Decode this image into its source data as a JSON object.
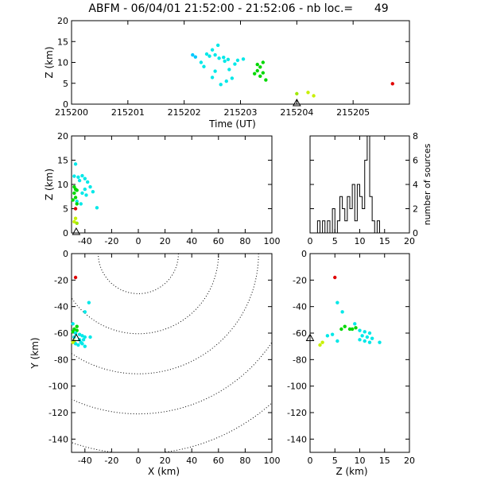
{
  "title": "ABFM - 06/04/01 21:52:00 - 21:52:06 - nb loc.=      49",
  "chart_data": [
    {
      "id": "time",
      "type": "scatter",
      "xlabel": "Time (UT)",
      "ylabel": "Z (km)",
      "xlim": [
        215200,
        215206
      ],
      "ylim": [
        0,
        20
      ],
      "xticks": [
        215200,
        215201,
        215202,
        215203,
        215204,
        215205
      ],
      "yticks": [
        0,
        5,
        10,
        15,
        20
      ],
      "marker": {
        "x": 215204.0,
        "y": 0,
        "symbol": "triangle"
      },
      "points": [
        {
          "x": 215202.15,
          "y": 11.8,
          "color": "#00c8ff"
        },
        {
          "x": 215202.2,
          "y": 11.3,
          "color": "#00c8ff"
        },
        {
          "x": 215202.4,
          "y": 12.0,
          "color": "#00e8e8"
        },
        {
          "x": 215202.45,
          "y": 11.5,
          "color": "#00e8e8"
        },
        {
          "x": 215202.5,
          "y": 13.0,
          "color": "#00e8e8"
        },
        {
          "x": 215202.55,
          "y": 11.8,
          "color": "#00e8e8"
        },
        {
          "x": 215202.6,
          "y": 14.1,
          "color": "#00e8e8"
        },
        {
          "x": 215202.62,
          "y": 11.0,
          "color": "#00e8e8"
        },
        {
          "x": 215202.3,
          "y": 10.0,
          "color": "#00e8e8"
        },
        {
          "x": 215202.35,
          "y": 9.0,
          "color": "#00e8e8"
        },
        {
          "x": 215202.7,
          "y": 11.2,
          "color": "#00e8e8"
        },
        {
          "x": 215202.72,
          "y": 10.3,
          "color": "#00e8e8"
        },
        {
          "x": 215202.78,
          "y": 10.7,
          "color": "#00e8e8"
        },
        {
          "x": 215202.8,
          "y": 8.3,
          "color": "#00e8e8"
        },
        {
          "x": 215202.55,
          "y": 7.9,
          "color": "#00e8e8"
        },
        {
          "x": 215202.5,
          "y": 6.4,
          "color": "#00e8e8"
        },
        {
          "x": 215202.65,
          "y": 4.7,
          "color": "#00e8e8"
        },
        {
          "x": 215202.85,
          "y": 6.2,
          "color": "#00e8e8"
        },
        {
          "x": 215202.9,
          "y": 9.6,
          "color": "#00e8e8"
        },
        {
          "x": 215202.95,
          "y": 10.5,
          "color": "#00e8e8"
        },
        {
          "x": 215202.75,
          "y": 5.5,
          "color": "#00e8e8"
        },
        {
          "x": 215203.05,
          "y": 10.8,
          "color": "#00e8e8"
        },
        {
          "x": 215203.3,
          "y": 9.5,
          "color": "#00d800"
        },
        {
          "x": 215203.35,
          "y": 8.9,
          "color": "#00d800"
        },
        {
          "x": 215203.3,
          "y": 8.0,
          "color": "#00d800"
        },
        {
          "x": 215203.25,
          "y": 7.3,
          "color": "#00d800"
        },
        {
          "x": 215203.35,
          "y": 6.7,
          "color": "#00d800"
        },
        {
          "x": 215203.4,
          "y": 10.0,
          "color": "#00d800"
        },
        {
          "x": 215203.4,
          "y": 7.5,
          "color": "#00d800"
        },
        {
          "x": 215203.45,
          "y": 5.8,
          "color": "#00d800"
        },
        {
          "x": 215204.0,
          "y": 2.5,
          "color": "#a0e800"
        },
        {
          "x": 215204.2,
          "y": 2.8,
          "color": "#c8f000"
        },
        {
          "x": 215204.3,
          "y": 2.0,
          "color": "#c8f000"
        },
        {
          "x": 215205.7,
          "y": 4.9,
          "color": "#e00000"
        }
      ]
    },
    {
      "id": "xz",
      "type": "scatter",
      "ylabel": "Z (km)",
      "xlim": [
        -50,
        100
      ],
      "ylim": [
        0,
        20
      ],
      "xticks": [
        -40,
        -20,
        0,
        20,
        40,
        60,
        80,
        100
      ],
      "yticks": [
        0,
        5,
        10,
        15,
        20
      ],
      "marker": {
        "x": -46.5,
        "y": 0,
        "symbol": "triangle"
      },
      "points": [
        {
          "x": -47,
          "y": 14.2,
          "color": "#00e8e8"
        },
        {
          "x": -48,
          "y": 11.7,
          "color": "#00e8e8"
        },
        {
          "x": -45,
          "y": 11.5,
          "color": "#00e8e8"
        },
        {
          "x": -42,
          "y": 11.8,
          "color": "#00e8e8"
        },
        {
          "x": -40,
          "y": 11.2,
          "color": "#00e8e8"
        },
        {
          "x": -44,
          "y": 10.8,
          "color": "#00e8e8"
        },
        {
          "x": -38,
          "y": 10.5,
          "color": "#00e8e8"
        },
        {
          "x": -36,
          "y": 9.5,
          "color": "#00e8e8"
        },
        {
          "x": -40,
          "y": 9.0,
          "color": "#00e8e8"
        },
        {
          "x": -34,
          "y": 8.5,
          "color": "#00e8e8"
        },
        {
          "x": -42,
          "y": 8.2,
          "color": "#00e8e8"
        },
        {
          "x": -39,
          "y": 7.8,
          "color": "#00e8e8"
        },
        {
          "x": -31,
          "y": 5.2,
          "color": "#00e8e8"
        },
        {
          "x": -46,
          "y": 6.5,
          "color": "#00e8e8"
        },
        {
          "x": -43,
          "y": 6.0,
          "color": "#00e8e8"
        },
        {
          "x": -48,
          "y": 9.5,
          "color": "#00d800"
        },
        {
          "x": -47,
          "y": 9.0,
          "color": "#00d800"
        },
        {
          "x": -46,
          "y": 8.8,
          "color": "#00d800"
        },
        {
          "x": -48,
          "y": 8.2,
          "color": "#00d800"
        },
        {
          "x": -47,
          "y": 7.3,
          "color": "#00d800"
        },
        {
          "x": -49,
          "y": 6.8,
          "color": "#00d800"
        },
        {
          "x": -46,
          "y": 6.0,
          "color": "#00d800"
        },
        {
          "x": -47,
          "y": 3.0,
          "color": "#c8f000"
        },
        {
          "x": -48,
          "y": 2.3,
          "color": "#c8f000"
        },
        {
          "x": -46,
          "y": 2.0,
          "color": "#a0e800"
        },
        {
          "x": -47,
          "y": 5.0,
          "color": "#e00000"
        }
      ]
    },
    {
      "id": "hist",
      "type": "bar",
      "ylabel": "number of sources",
      "xlim": [
        0,
        20
      ],
      "ylim": [
        0,
        8
      ],
      "xticks": [
        0,
        5,
        10,
        15,
        20
      ],
      "yticks": [
        0,
        2,
        4,
        6,
        8
      ],
      "bin_width": 0.5,
      "bin_start": 0,
      "values": [
        0,
        0,
        0,
        1,
        0,
        1,
        0,
        1,
        0,
        2,
        0,
        1,
        3,
        2,
        1,
        3,
        2,
        4,
        1,
        4,
        3,
        2,
        6,
        8,
        3,
        1,
        0,
        1,
        0,
        0,
        0,
        0,
        0,
        0,
        0,
        0,
        0,
        0,
        0,
        0
      ]
    },
    {
      "id": "xy",
      "type": "scatter",
      "xlabel": "X (km)",
      "ylabel": "Y (km)",
      "xlim": [
        -50,
        100
      ],
      "ylim": [
        -150,
        0
      ],
      "xticks": [
        -40,
        -20,
        0,
        20,
        40,
        60,
        80,
        100
      ],
      "yticks": [
        -140,
        -120,
        -100,
        -80,
        -60,
        -40,
        -20,
        0
      ],
      "marker": {
        "x": -46.5,
        "y": -64.5,
        "symbol": "triangle"
      },
      "range_rings_km": [
        30,
        60,
        90,
        120,
        150
      ],
      "points": [
        {
          "x": -47,
          "y": -18,
          "color": "#e00000"
        },
        {
          "x": -37,
          "y": -37,
          "color": "#00e8e8"
        },
        {
          "x": -40,
          "y": -44,
          "color": "#00e8e8"
        },
        {
          "x": -49,
          "y": -53,
          "color": "#00e8e8"
        },
        {
          "x": -46,
          "y": -55,
          "color": "#00d800"
        },
        {
          "x": -48,
          "y": -57,
          "color": "#00d800"
        },
        {
          "x": -46,
          "y": -58,
          "color": "#00d800"
        },
        {
          "x": -49,
          "y": -59,
          "color": "#00d800"
        },
        {
          "x": -47,
          "y": -60,
          "color": "#00e8e8"
        },
        {
          "x": -44,
          "y": -61,
          "color": "#00e8e8"
        },
        {
          "x": -42,
          "y": -62,
          "color": "#00e8e8"
        },
        {
          "x": -40,
          "y": -63,
          "color": "#00e8e8"
        },
        {
          "x": -48,
          "y": -63,
          "color": "#00e8e8"
        },
        {
          "x": -44,
          "y": -65,
          "color": "#00e8e8"
        },
        {
          "x": -41,
          "y": -65,
          "color": "#00e8e8"
        },
        {
          "x": -48,
          "y": -66,
          "color": "#a0e800"
        },
        {
          "x": -43,
          "y": -67,
          "color": "#00e8e8"
        },
        {
          "x": -47,
          "y": -68,
          "color": "#00e8e8"
        },
        {
          "x": -42,
          "y": -68,
          "color": "#00e8e8"
        },
        {
          "x": -45,
          "y": -69,
          "color": "#00e8e8"
        },
        {
          "x": -40,
          "y": -70,
          "color": "#00e8e8"
        },
        {
          "x": -36,
          "y": -63,
          "color": "#00e8e8"
        },
        {
          "x": -49,
          "y": -67,
          "color": "#c8f000"
        }
      ]
    },
    {
      "id": "zy",
      "type": "scatter",
      "xlabel": "Z (km)",
      "xlim": [
        0,
        20
      ],
      "ylim": [
        -150,
        0
      ],
      "xticks": [
        0,
        5,
        10,
        15,
        20
      ],
      "yticks": [
        -140,
        -120,
        -100,
        -80,
        -60,
        -40,
        -20,
        0
      ],
      "marker": {
        "x": 0,
        "y": -64.5,
        "symbol": "triangle"
      },
      "points": [
        {
          "x": 5,
          "y": -18,
          "color": "#e00000"
        },
        {
          "x": 5.5,
          "y": -37,
          "color": "#00e8e8"
        },
        {
          "x": 6.5,
          "y": -44,
          "color": "#00e8e8"
        },
        {
          "x": 9,
          "y": -53,
          "color": "#00e8e8"
        },
        {
          "x": 7,
          "y": -55,
          "color": "#00d800"
        },
        {
          "x": 8,
          "y": -57,
          "color": "#00d800"
        },
        {
          "x": 8.5,
          "y": -57,
          "color": "#00d800"
        },
        {
          "x": 9.2,
          "y": -56,
          "color": "#00d800"
        },
        {
          "x": 6.3,
          "y": -57,
          "color": "#00d800"
        },
        {
          "x": 10,
          "y": -58,
          "color": "#00e8e8"
        },
        {
          "x": 11,
          "y": -59,
          "color": "#00e8e8"
        },
        {
          "x": 12,
          "y": -60,
          "color": "#00e8e8"
        },
        {
          "x": 4.5,
          "y": -61,
          "color": "#00e8e8"
        },
        {
          "x": 3.5,
          "y": -62,
          "color": "#00e8e8"
        },
        {
          "x": 10.5,
          "y": -62,
          "color": "#00e8e8"
        },
        {
          "x": 11.5,
          "y": -63,
          "color": "#00e8e8"
        },
        {
          "x": 12.5,
          "y": -64,
          "color": "#00e8e8"
        },
        {
          "x": 10,
          "y": -65,
          "color": "#00e8e8"
        },
        {
          "x": 11,
          "y": -66,
          "color": "#00e8e8"
        },
        {
          "x": 12,
          "y": -67,
          "color": "#00e8e8"
        },
        {
          "x": 14,
          "y": -67,
          "color": "#00e8e8"
        },
        {
          "x": 5.5,
          "y": -66,
          "color": "#00e8e8"
        },
        {
          "x": 2.5,
          "y": -67,
          "color": "#c8f000"
        },
        {
          "x": 2,
          "y": -69,
          "color": "#c8f000"
        }
      ]
    }
  ]
}
